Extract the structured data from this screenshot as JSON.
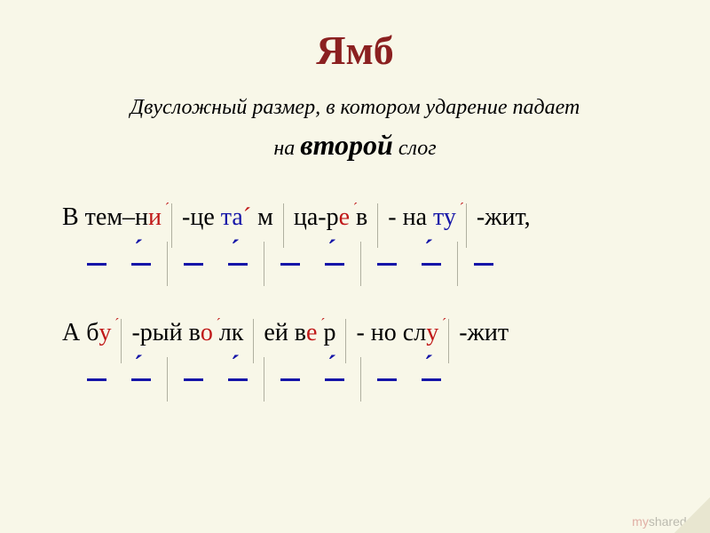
{
  "title": "Ямб",
  "definition_line1_pre": "Двусложный  размер, в котором  ударение  падает",
  "definition_line2_pre": "на  ",
  "definition_emphasis": "второй",
  "definition_line2_post": "  слог",
  "line1": {
    "s1a": "В тем–н",
    "s1b": "и",
    "s2a": "-це  ",
    "s2b": "та",
    "s2c": " м",
    "s3a": " ца-р",
    "s3b": "е",
    "s3c": " в",
    "s4a": " - на  ",
    "s4b": "ту",
    "s5a": " -жит,"
  },
  "line2": {
    "s1a": "А б",
    "s1b": "у",
    "s2a": " -рый в",
    "s2b": "о",
    "s2c": " лк",
    "s3a": " ей в",
    "s3b": "е",
    "s3c": " р",
    "s4a": " - но  сл",
    "s4b": "у",
    "s5a": " -жит"
  },
  "watermark": "myshared",
  "colors": {
    "background": "#f8f7e8",
    "title": "#8b2020",
    "accent_red": "#c01818",
    "accent_blue": "#1515a8",
    "divider": "#b0b0a0"
  },
  "scansion": {
    "pattern1": [
      "u",
      "s",
      "|",
      "u",
      "s",
      "|",
      "u",
      "s",
      "|",
      "u",
      "s",
      "|",
      "u"
    ],
    "pattern2": [
      "u",
      "s",
      "|",
      "u",
      "s",
      "|",
      "u",
      "s",
      "|",
      "u",
      "s"
    ]
  }
}
